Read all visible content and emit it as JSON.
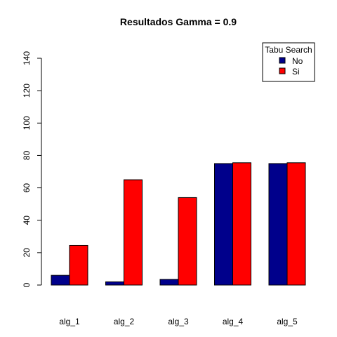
{
  "chart_data": {
    "type": "bar",
    "title": "Resultados Gamma = 0.9",
    "xlabel": "",
    "ylabel": "",
    "categories": [
      "alg_1",
      "alg_2",
      "alg_3",
      "alg_4",
      "alg_5"
    ],
    "ylim": [
      0,
      140
    ],
    "yticks": [
      0,
      20,
      40,
      60,
      80,
      100,
      120,
      140
    ],
    "grid": false,
    "legend": {
      "title": "Tabu Search",
      "position": "top-right"
    },
    "series": [
      {
        "name": "No",
        "color": "#00008b",
        "values": [
          6,
          2,
          3.5,
          75,
          75
        ]
      },
      {
        "name": "Si",
        "color": "#ff0000",
        "values": [
          24.5,
          65,
          54,
          75.5,
          75.5
        ]
      }
    ]
  }
}
